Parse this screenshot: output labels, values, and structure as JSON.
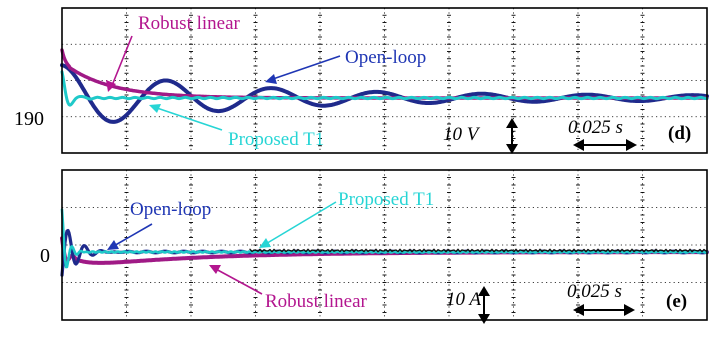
{
  "colors": {
    "open_loop": "#1f2a8c",
    "robust_linear": "#a01a86",
    "proposed_t1": "#1fc9c9",
    "proposed_t1_text": "#27d5d5",
    "open_loop_text": "#1f36b4",
    "robust_linear_text": "#b3168f",
    "grid": "#000000"
  },
  "chart_data": [
    {
      "type": "line",
      "panel_label": "(d)",
      "y_reference_label": "190",
      "voltage_scale": "10 V",
      "time_scale": "0.025 s",
      "legend_placement": "inline annotations with arrows",
      "grid": true,
      "x_divisions": 10,
      "y_divisions": 4,
      "series": [
        {
          "name": "Open-loop",
          "color": "#1f2a8c",
          "behavior": "damped oscillation about steady value"
        },
        {
          "name": "Robust linear",
          "color": "#a01a86",
          "behavior": "slow exponential settle from above"
        },
        {
          "name": "Proposed T1",
          "color": "#1fc9c9",
          "behavior": "fast settle, near-flat"
        }
      ]
    },
    {
      "type": "line",
      "panel_label": "(e)",
      "y_reference_label": "0",
      "current_scale": "10 A",
      "time_scale": "0.025 s",
      "legend_placement": "inline annotations with arrows",
      "grid": true,
      "x_divisions": 10,
      "y_divisions": 4,
      "series": [
        {
          "name": "Open-loop",
          "color": "#1f2a8c",
          "behavior": "brief spike then near zero"
        },
        {
          "name": "Proposed T1",
          "color": "#1fc9c9",
          "behavior": "short transient then zero"
        },
        {
          "name": "Robust linear",
          "color": "#a01a86",
          "behavior": "negative dip recovering to zero"
        }
      ]
    }
  ],
  "labels": {
    "d_robust": "Robust linear",
    "d_open": "Open-loop",
    "d_proposed": "Proposed T1",
    "e_open": "Open-loop",
    "e_proposed": "Proposed T1",
    "e_robust": "Robust linear"
  }
}
